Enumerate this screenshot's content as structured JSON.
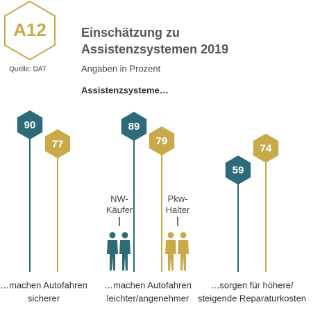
{
  "badge": "A12",
  "source": "Quelle: DAT",
  "chart_data": {
    "type": "hex-lollipop",
    "title": [
      "Einschätzung zu",
      "Assistenzsystemen 2019"
    ],
    "subtitle": "Angaben in Prozent",
    "heading": "Assistenzsysteme…",
    "categories": [
      [
        "…machen Autofahren",
        "sicherer"
      ],
      [
        "…machen Autofahren",
        "leichter/angenehmer"
      ],
      [
        "…sorgen für höhere/",
        "steigende Reparaturkosten"
      ]
    ],
    "series": [
      {
        "name": "NW-Käufer",
        "color": "#2e6b7a",
        "values": [
          90,
          89,
          59
        ]
      },
      {
        "name": "Pkw-Halter",
        "color": "#c9a94a",
        "values": [
          77,
          79,
          74
        ]
      }
    ]
  }
}
